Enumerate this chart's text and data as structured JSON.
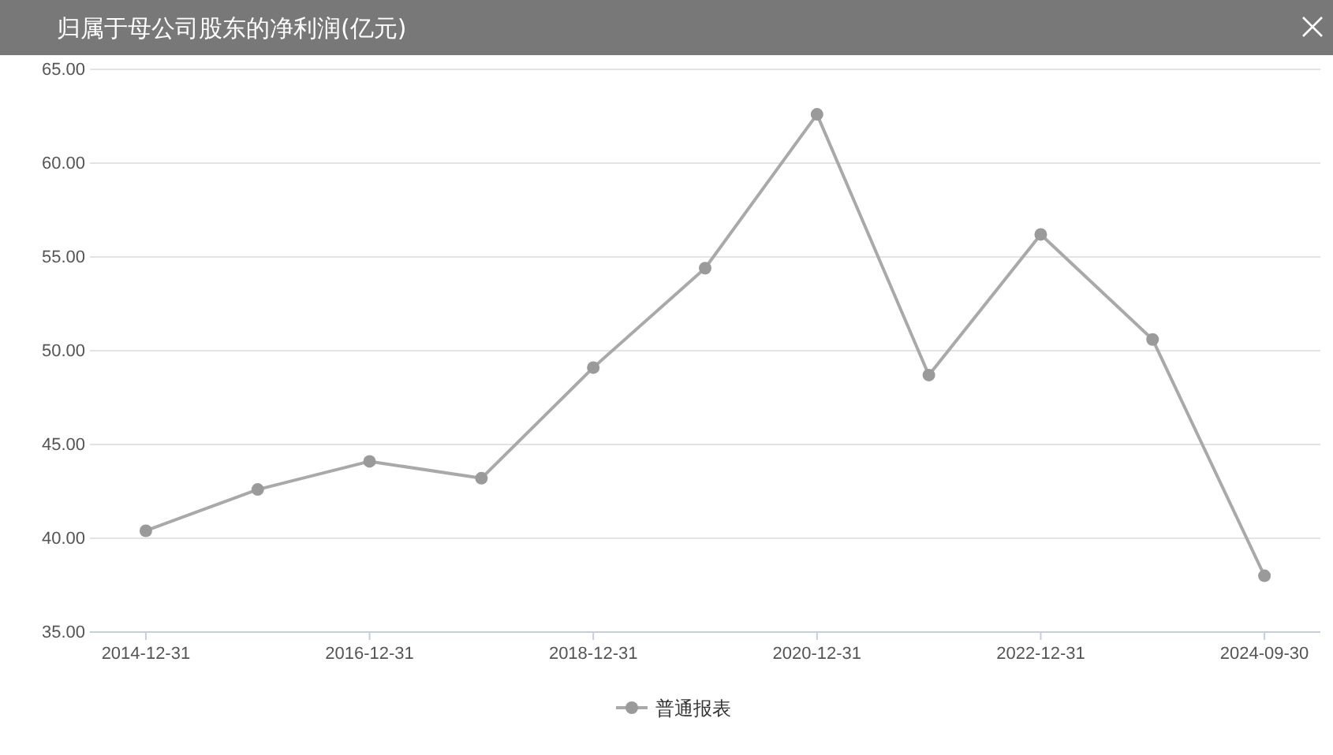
{
  "chart_data": {
    "type": "line",
    "title": "归属于母公司股东的净利润(亿元)",
    "categories": [
      "2014-12-31",
      null,
      "2016-12-31",
      null,
      "2018-12-31",
      null,
      "2020-12-31",
      null,
      "2022-12-31",
      null,
      "2024-09-30"
    ],
    "series": [
      {
        "name": "普通报表",
        "color": "#a9a9a9",
        "values": [
          40.4,
          42.6,
          44.1,
          43.2,
          49.1,
          54.4,
          62.6,
          48.7,
          56.2,
          50.6,
          38.0
        ]
      }
    ],
    "ylim": [
      35,
      65
    ],
    "yticks": [
      {
        "value": 35,
        "label": "35.00"
      },
      {
        "value": 40,
        "label": "40.00"
      },
      {
        "value": 45,
        "label": "45.00"
      },
      {
        "value": 50,
        "label": "50.00"
      },
      {
        "value": 55,
        "label": "55.00"
      },
      {
        "value": 60,
        "label": "60.00"
      },
      {
        "value": 65,
        "label": "65.00"
      }
    ],
    "grid": "y",
    "legend": "bottom",
    "marker": "circle",
    "line_style": "solid"
  }
}
